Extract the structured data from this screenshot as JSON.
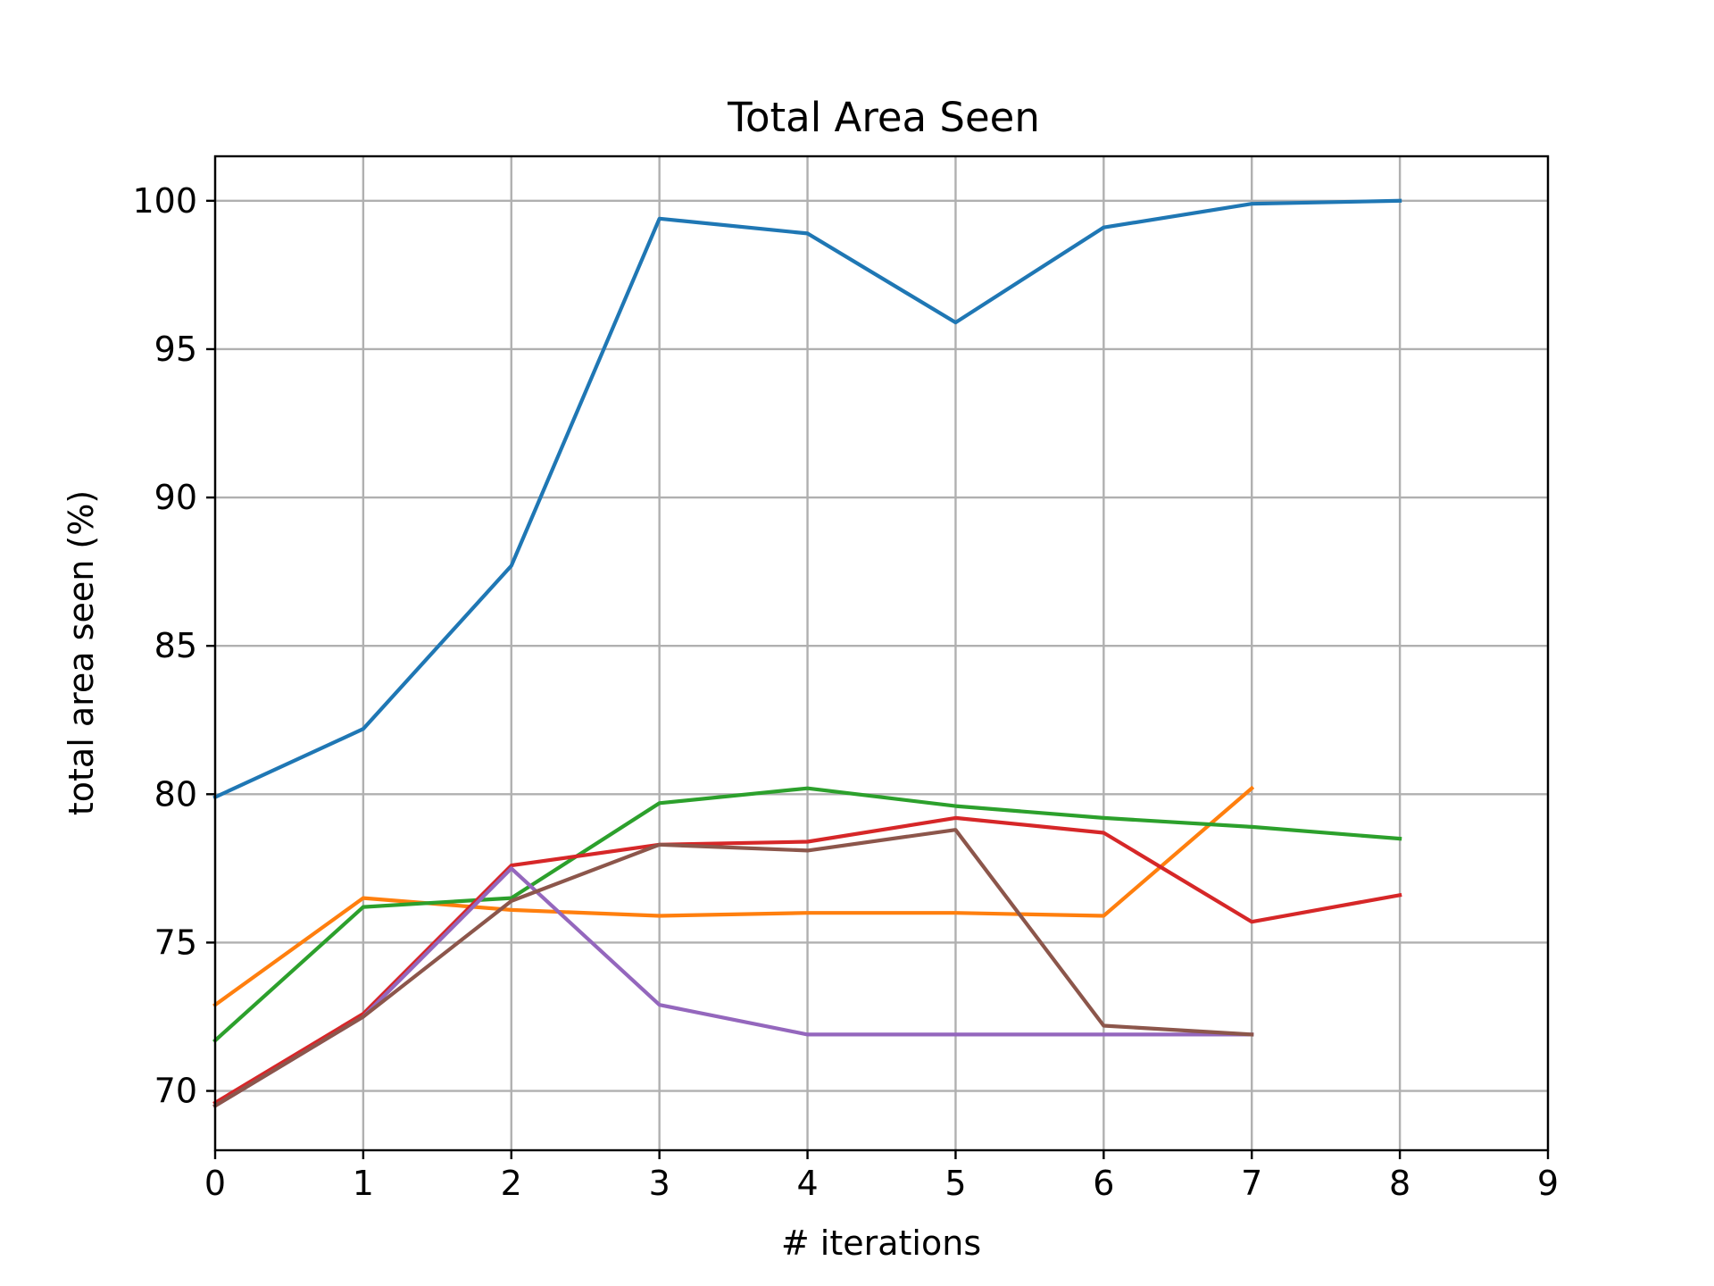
{
  "chart_data": {
    "type": "line",
    "title": "Total Area Seen",
    "xlabel": "# iterations",
    "ylabel": "total area seen (%)",
    "xlim": [
      0,
      9
    ],
    "ylim": [
      68,
      101.5
    ],
    "xticks": [
      "0",
      "1",
      "2",
      "3",
      "4",
      "5",
      "6",
      "7",
      "8",
      "9"
    ],
    "yticks": [
      "70",
      "75",
      "80",
      "85",
      "90",
      "95",
      "100"
    ],
    "grid": true,
    "series": [
      {
        "color": "#1f77b4",
        "x": [
          0,
          1,
          2,
          3,
          4,
          5,
          6,
          7,
          8
        ],
        "values": [
          79.9,
          82.2,
          87.7,
          99.4,
          98.9,
          95.9,
          99.1,
          99.9,
          100.0
        ]
      },
      {
        "color": "#ff7f0e",
        "x": [
          0,
          1,
          2,
          3,
          4,
          5,
          6,
          7
        ],
        "values": [
          72.9,
          76.5,
          76.1,
          75.9,
          76.0,
          76.0,
          75.9,
          80.2
        ]
      },
      {
        "color": "#2ca02c",
        "x": [
          0,
          1,
          2,
          3,
          4,
          5,
          6,
          7,
          8
        ],
        "values": [
          71.7,
          76.2,
          76.5,
          79.7,
          80.2,
          79.6,
          79.2,
          78.9,
          78.5
        ]
      },
      {
        "color": "#d62728",
        "x": [
          0,
          1,
          2,
          3,
          4,
          5,
          6,
          7,
          8
        ],
        "values": [
          69.6,
          72.6,
          77.6,
          78.3,
          78.4,
          79.2,
          78.7,
          75.7,
          76.6
        ]
      },
      {
        "color": "#9467bd",
        "x": [
          0,
          1,
          2,
          3,
          4,
          5,
          6,
          7
        ],
        "values": [
          69.5,
          72.5,
          77.5,
          72.9,
          71.9,
          71.9,
          71.9,
          71.9
        ]
      },
      {
        "color": "#8c564b",
        "x": [
          0,
          1,
          2,
          3,
          4,
          5,
          6,
          7
        ],
        "values": [
          69.5,
          72.5,
          76.4,
          78.3,
          78.1,
          78.8,
          72.2,
          71.9
        ]
      }
    ]
  }
}
